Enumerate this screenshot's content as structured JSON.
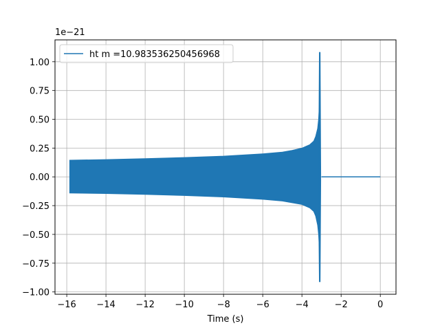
{
  "chart_data": {
    "type": "line",
    "title": "",
    "xlabel": "Time (s)",
    "ylabel": "",
    "y_offset_label": "1e−21",
    "xlim": [
      -16.6,
      0.8
    ],
    "ylim": [
      -1.02,
      1.19
    ],
    "x_ticks": [
      -16,
      -14,
      -12,
      -10,
      -8,
      -6,
      -4,
      -2,
      0
    ],
    "x_tick_labels": [
      "−16",
      "−14",
      "−12",
      "−10",
      "−8",
      "−6",
      "−4",
      "−2",
      "0"
    ],
    "y_ticks": [
      -1.0,
      -0.75,
      -0.5,
      -0.25,
      0.0,
      0.25,
      0.5,
      0.75,
      1.0
    ],
    "y_tick_labels": [
      "−1.00",
      "−0.75",
      "−0.50",
      "−0.25",
      "0.00",
      "0.25",
      "0.50",
      "0.75",
      "1.00"
    ],
    "grid": true,
    "legend_position": "top-left",
    "series": [
      {
        "name": "ht m =10.983536250456968",
        "color": "#1f77b4",
        "envelope": {
          "x": [
            -15.85,
            -14,
            -12,
            -10,
            -8,
            -6,
            -5,
            -4.5,
            -4,
            -3.6,
            -3.4,
            -3.3,
            -3.2,
            -3.15,
            -3.12
          ],
          "upper": [
            0.145,
            0.15,
            0.158,
            0.168,
            0.18,
            0.2,
            0.215,
            0.23,
            0.25,
            0.28,
            0.31,
            0.35,
            0.42,
            0.5,
            0.6
          ],
          "lower": [
            -0.14,
            -0.145,
            -0.152,
            -0.162,
            -0.175,
            -0.195,
            -0.21,
            -0.225,
            -0.24,
            -0.27,
            -0.3,
            -0.34,
            -0.42,
            -0.5,
            -0.6
          ]
        },
        "merger_peak": {
          "x": -3.08,
          "max": 1.08,
          "min": -0.91
        },
        "flat_after": {
          "x_start": -3.0,
          "x_end": 0.0,
          "value": 0.0
        }
      }
    ]
  }
}
